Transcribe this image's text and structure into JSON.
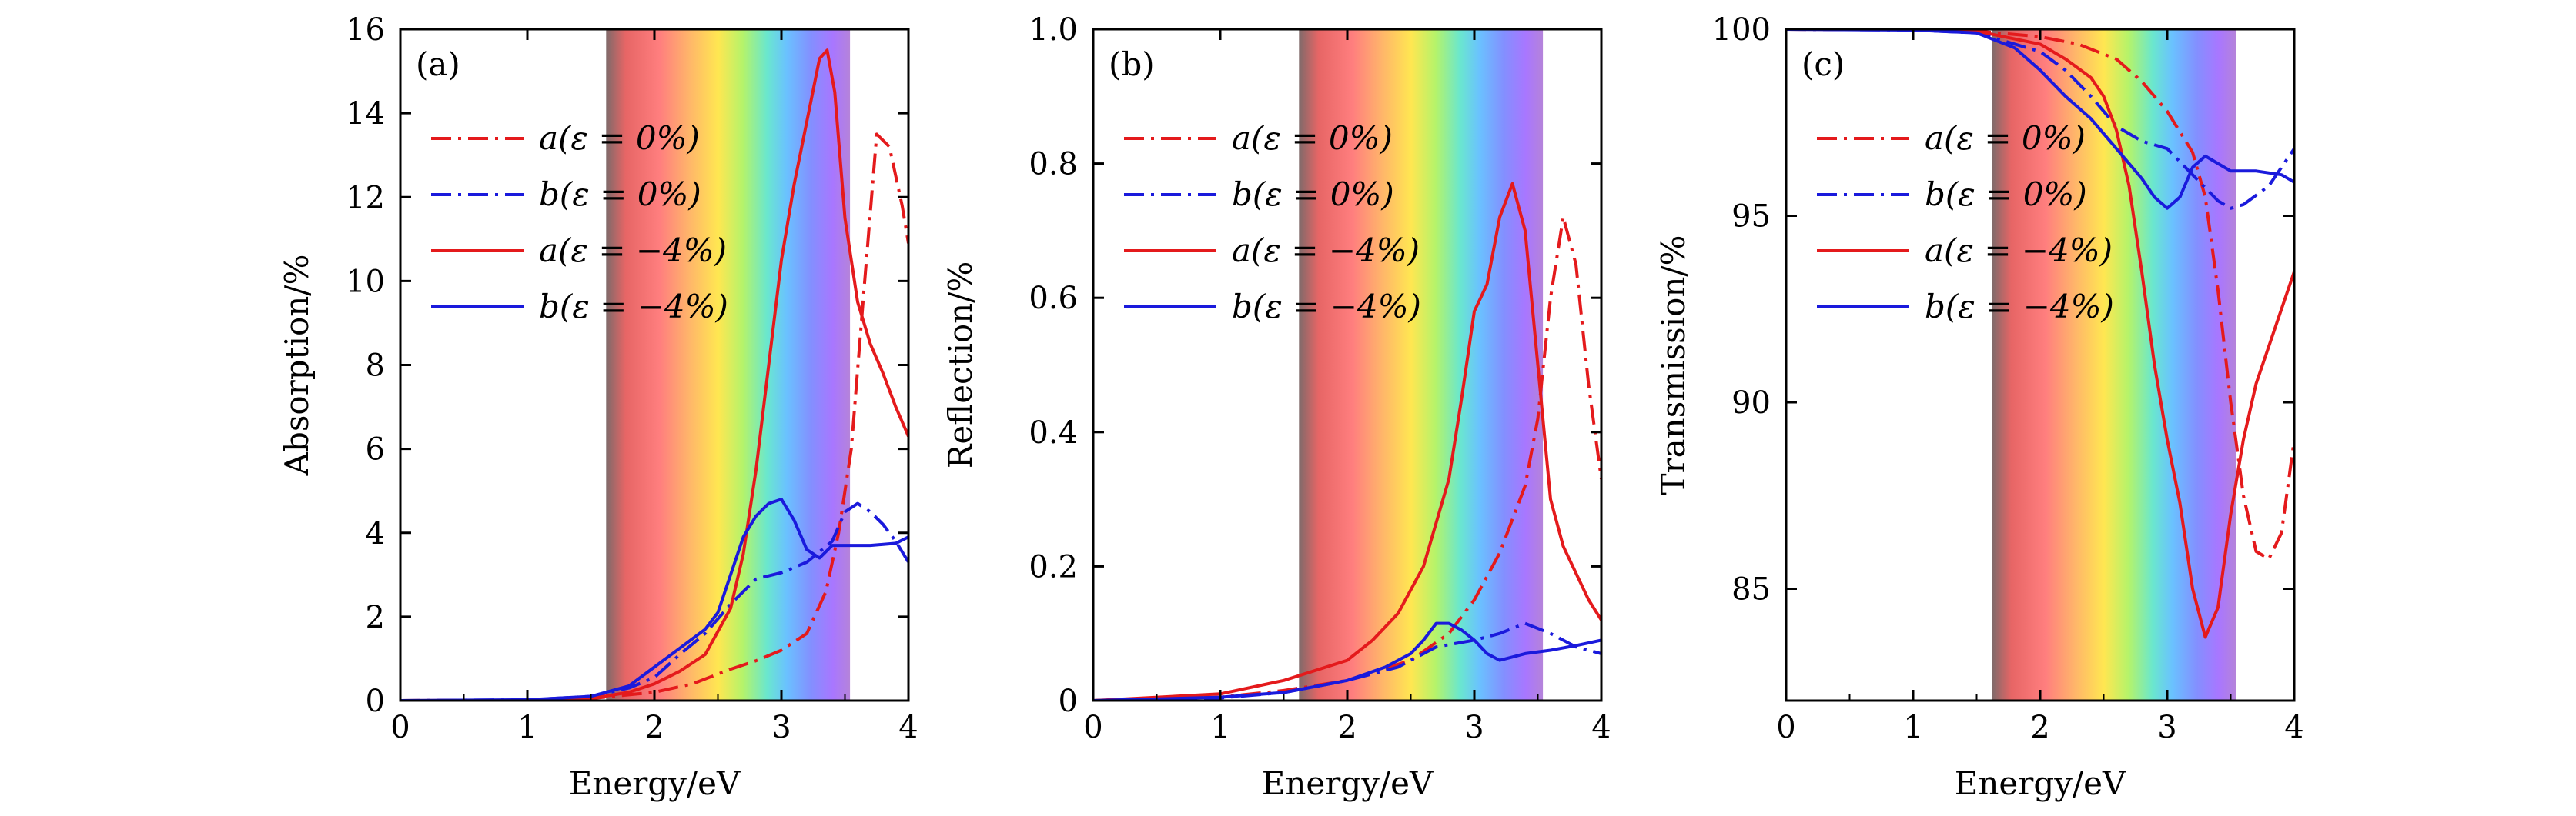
{
  "chart_data": [
    {
      "type": "line",
      "panel_label": "(a)",
      "xlabel": "Energy/eV",
      "ylabel": "Absorption/%",
      "xlim": [
        0,
        4
      ],
      "ylim": [
        0,
        16
      ],
      "xticks": [
        0,
        1,
        2,
        3,
        4
      ],
      "yticks": [
        0,
        2,
        4,
        6,
        8,
        10,
        12,
        14,
        16
      ],
      "visible_band_eV": [
        1.62,
        3.54
      ],
      "legend_position": "upper-left",
      "series": [
        {
          "name": "a(ε = 0%)",
          "color": "#e41a1c",
          "dash": "dashdot",
          "x": [
            0,
            1,
            1.5,
            2.0,
            2.3,
            2.6,
            2.8,
            3.0,
            3.2,
            3.35,
            3.45,
            3.55,
            3.65,
            3.75,
            3.85,
            3.95,
            4.0
          ],
          "y": [
            0,
            0.01,
            0.05,
            0.2,
            0.4,
            0.75,
            0.95,
            1.2,
            1.6,
            2.6,
            4.0,
            6.0,
            9.8,
            13.5,
            13.2,
            11.8,
            10.9
          ]
        },
        {
          "name": "b(ε = 0%)",
          "color": "#1a1adc",
          "dash": "dashdot",
          "x": [
            0,
            1,
            1.5,
            1.8,
            2.0,
            2.2,
            2.4,
            2.6,
            2.8,
            3.0,
            3.2,
            3.4,
            3.5,
            3.6,
            3.7,
            3.8,
            3.9,
            4.0
          ],
          "y": [
            0,
            0.02,
            0.1,
            0.3,
            0.55,
            1.1,
            1.6,
            2.3,
            2.9,
            3.05,
            3.3,
            3.8,
            4.5,
            4.7,
            4.5,
            4.2,
            3.8,
            3.3
          ]
        },
        {
          "name": "a(ε = −4%)",
          "color": "#e41a1c",
          "dash": "solid",
          "x": [
            0,
            1,
            1.5,
            1.8,
            2.0,
            2.2,
            2.4,
            2.6,
            2.7,
            2.8,
            2.9,
            3.0,
            3.1,
            3.2,
            3.3,
            3.36,
            3.42,
            3.5,
            3.6,
            3.7,
            3.8,
            3.9,
            4.0
          ],
          "y": [
            0,
            0.01,
            0.05,
            0.2,
            0.4,
            0.7,
            1.1,
            2.2,
            3.5,
            5.5,
            8.0,
            10.5,
            12.3,
            13.8,
            15.3,
            15.5,
            14.5,
            11.5,
            9.5,
            8.5,
            7.8,
            7.0,
            6.3
          ]
        },
        {
          "name": "b(ε = −4%)",
          "color": "#1a1adc",
          "dash": "solid",
          "x": [
            0,
            1,
            1.5,
            1.8,
            2.0,
            2.2,
            2.4,
            2.5,
            2.6,
            2.7,
            2.8,
            2.9,
            3.0,
            3.1,
            3.2,
            3.3,
            3.4,
            3.5,
            3.7,
            3.9,
            4.0
          ],
          "y": [
            0,
            0.02,
            0.1,
            0.35,
            0.8,
            1.25,
            1.7,
            2.1,
            3.0,
            3.9,
            4.4,
            4.7,
            4.8,
            4.3,
            3.6,
            3.4,
            3.7,
            3.7,
            3.7,
            3.75,
            3.9
          ]
        }
      ]
    },
    {
      "type": "line",
      "panel_label": "(b)",
      "xlabel": "Energy/eV",
      "ylabel": "Reflection/%",
      "xlim": [
        0,
        4
      ],
      "ylim": [
        0,
        1.0
      ],
      "xticks": [
        0,
        1,
        2,
        3,
        4
      ],
      "yticks": [
        0,
        0.2,
        0.4,
        0.6,
        0.8,
        1.0
      ],
      "ytick_labels": [
        "0",
        "0.2",
        "0.4",
        "0.6",
        "0.8",
        "1.0"
      ],
      "visible_band_eV": [
        1.62,
        3.54
      ],
      "legend_position": "upper-left",
      "series": [
        {
          "name": "a(ε = 0%)",
          "color": "#e41a1c",
          "dash": "dashdot",
          "x": [
            0,
            1,
            1.5,
            2.0,
            2.5,
            2.8,
            3.0,
            3.2,
            3.4,
            3.5,
            3.6,
            3.7,
            3.8,
            3.9,
            4.0
          ],
          "y": [
            0,
            0.005,
            0.015,
            0.03,
            0.06,
            0.1,
            0.15,
            0.22,
            0.32,
            0.42,
            0.6,
            0.72,
            0.65,
            0.47,
            0.33
          ]
        },
        {
          "name": "b(ε = 0%)",
          "color": "#1a1adc",
          "dash": "dashdot",
          "x": [
            0,
            1,
            1.5,
            2.0,
            2.4,
            2.7,
            3.0,
            3.2,
            3.4,
            3.6,
            3.8,
            4.0
          ],
          "y": [
            0,
            0.004,
            0.012,
            0.03,
            0.05,
            0.08,
            0.09,
            0.1,
            0.115,
            0.1,
            0.08,
            0.07
          ]
        },
        {
          "name": "a(ε = −4%)",
          "color": "#e41a1c",
          "dash": "solid",
          "x": [
            0,
            1,
            1.5,
            2.0,
            2.2,
            2.4,
            2.6,
            2.8,
            2.9,
            3.0,
            3.1,
            3.2,
            3.3,
            3.4,
            3.5,
            3.6,
            3.7,
            3.8,
            3.9,
            4.0
          ],
          "y": [
            0,
            0.01,
            0.03,
            0.06,
            0.09,
            0.13,
            0.2,
            0.33,
            0.45,
            0.58,
            0.62,
            0.72,
            0.77,
            0.7,
            0.5,
            0.3,
            0.23,
            0.19,
            0.15,
            0.12
          ]
        },
        {
          "name": "b(ε = −4%)",
          "color": "#1a1adc",
          "dash": "solid",
          "x": [
            0,
            1,
            1.5,
            2.0,
            2.3,
            2.5,
            2.6,
            2.7,
            2.8,
            2.9,
            3.0,
            3.1,
            3.2,
            3.3,
            3.4,
            3.6,
            3.8,
            4.0
          ],
          "y": [
            0,
            0.005,
            0.012,
            0.03,
            0.05,
            0.07,
            0.09,
            0.115,
            0.115,
            0.105,
            0.09,
            0.07,
            0.06,
            0.065,
            0.07,
            0.075,
            0.082,
            0.09
          ]
        }
      ]
    },
    {
      "type": "line",
      "panel_label": "(c)",
      "xlabel": "Energy/eV",
      "ylabel": "Transmission/%",
      "xlim": [
        0,
        4
      ],
      "ylim": [
        82,
        100
      ],
      "xticks": [
        0,
        1,
        2,
        3,
        4
      ],
      "yticks": [
        85,
        90,
        95,
        100
      ],
      "visible_band_eV": [
        1.62,
        3.54
      ],
      "legend_position": "upper-left",
      "series": [
        {
          "name": "a(ε = 0%)",
          "color": "#e41a1c",
          "dash": "dashdot",
          "x": [
            0,
            1,
            1.5,
            2.0,
            2.3,
            2.6,
            2.8,
            3.0,
            3.2,
            3.3,
            3.4,
            3.5,
            3.6,
            3.7,
            3.8,
            3.9,
            4.0
          ],
          "y": [
            100,
            99.99,
            99.95,
            99.8,
            99.6,
            99.2,
            98.6,
            97.8,
            96.7,
            95.5,
            93.0,
            90.0,
            87.5,
            86.0,
            85.8,
            86.5,
            89.0
          ]
        },
        {
          "name": "b(ε = 0%)",
          "color": "#1a1adc",
          "dash": "dashdot",
          "x": [
            0,
            1,
            1.5,
            2.0,
            2.2,
            2.4,
            2.6,
            2.8,
            3.0,
            3.2,
            3.4,
            3.5,
            3.6,
            3.8,
            4.0
          ],
          "y": [
            100,
            99.98,
            99.9,
            99.4,
            98.9,
            98.2,
            97.4,
            97.0,
            96.8,
            96.1,
            95.4,
            95.2,
            95.3,
            95.8,
            96.8
          ]
        },
        {
          "name": "a(ε = −4%)",
          "color": "#e41a1c",
          "dash": "solid",
          "x": [
            0,
            1,
            1.5,
            2.0,
            2.2,
            2.4,
            2.5,
            2.6,
            2.7,
            2.8,
            2.9,
            3.0,
            3.1,
            3.2,
            3.3,
            3.4,
            3.5,
            3.6,
            3.7,
            3.8,
            3.9,
            4.0
          ],
          "y": [
            100,
            99.99,
            99.95,
            99.6,
            99.2,
            98.7,
            98.2,
            97.3,
            95.8,
            93.5,
            91.0,
            89.0,
            87.3,
            85.0,
            83.7,
            84.5,
            87.0,
            89.0,
            90.5,
            91.5,
            92.5,
            93.5
          ]
        },
        {
          "name": "b(ε = −4%)",
          "color": "#1a1adc",
          "dash": "solid",
          "x": [
            0,
            1,
            1.5,
            1.8,
            2.0,
            2.2,
            2.4,
            2.5,
            2.6,
            2.8,
            2.9,
            3.0,
            3.1,
            3.2,
            3.3,
            3.4,
            3.5,
            3.7,
            3.9,
            4.0
          ],
          "y": [
            100,
            99.98,
            99.9,
            99.5,
            98.9,
            98.2,
            97.6,
            97.2,
            96.8,
            96.0,
            95.5,
            95.2,
            95.5,
            96.3,
            96.6,
            96.4,
            96.2,
            96.2,
            96.1,
            95.9
          ]
        }
      ]
    }
  ]
}
